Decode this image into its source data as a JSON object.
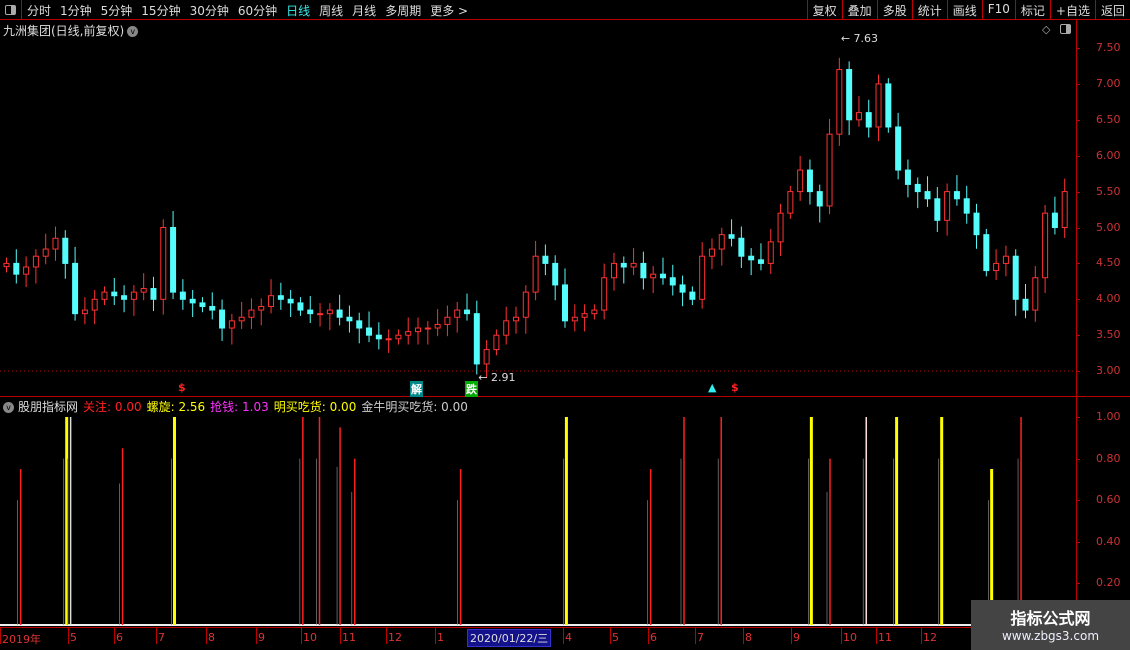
{
  "topbar": {
    "periods": [
      "分时",
      "1分钟",
      "5分钟",
      "15分钟",
      "30分钟",
      "60分钟",
      "日线",
      "周线",
      "月线",
      "多周期",
      "更多 >"
    ],
    "active_index": 6,
    "buttons": [
      "复权",
      "叠加",
      "多股",
      "统计",
      "画线",
      "F10",
      "标记",
      "+自选",
      "返回"
    ]
  },
  "stock_title": "九洲集团(日线,前复权)",
  "colors": {
    "up": "#ff3232",
    "down": "#54fcfc",
    "axis": "#b00000",
    "active": "#33eeee"
  },
  "chart_data": [
    {
      "type": "candlestick",
      "yticks": [
        "7.50",
        "7.00",
        "6.50",
        "6.00",
        "5.50",
        "5.00",
        "4.50",
        "4.00",
        "3.50",
        "3.00"
      ],
      "ylim": [
        2.8,
        7.7
      ],
      "closes": [
        4.5,
        4.35,
        4.45,
        4.6,
        4.7,
        4.85,
        4.5,
        3.8,
        3.85,
        4.0,
        4.1,
        4.05,
        4.0,
        4.1,
        4.15,
        4.0,
        5.0,
        4.1,
        4.0,
        3.95,
        3.9,
        3.85,
        3.6,
        3.7,
        3.75,
        3.85,
        3.9,
        4.05,
        4.0,
        3.95,
        3.85,
        3.8,
        3.8,
        3.85,
        3.75,
        3.7,
        3.6,
        3.5,
        3.45,
        3.45,
        3.5,
        3.55,
        3.6,
        3.6,
        3.65,
        3.75,
        3.85,
        3.8,
        3.1,
        3.3,
        3.5,
        3.7,
        3.75,
        4.1,
        4.6,
        4.5,
        4.2,
        3.7,
        3.75,
        3.8,
        3.85,
        4.3,
        4.5,
        4.45,
        4.5,
        4.3,
        4.35,
        4.3,
        4.2,
        4.1,
        4.0,
        4.6,
        4.7,
        4.9,
        4.85,
        4.6,
        4.55,
        4.5,
        4.8,
        5.2,
        5.5,
        5.8,
        5.5,
        5.3,
        6.3,
        7.2,
        6.5,
        6.6,
        6.4,
        7.0,
        6.4,
        5.8,
        5.6,
        5.5,
        5.4,
        5.1,
        5.5,
        5.4,
        5.2,
        4.9,
        4.4,
        4.5,
        4.6,
        4.0,
        3.85,
        4.3,
        5.2,
        5.0,
        5.5
      ],
      "high_annotation": "7.63",
      "low_annotation": "2.91",
      "markers": [
        "解",
        "跌"
      ]
    },
    {
      "type": "bar",
      "legend_name": "股朋指标网",
      "legend": [
        {
          "label": "关注: 0.00",
          "color": "#ff2020"
        },
        {
          "label": "螺旋: 2.56",
          "color": "#ffff00"
        },
        {
          "label": "抢钱: 1.03",
          "color": "#ff30ff"
        },
        {
          "label": "明买吃货: 0.00",
          "color": "#ffff00"
        },
        {
          "label": "金牛明买吃货: 0.00",
          "color": "#cccccc"
        }
      ],
      "yticks": [
        "1.00",
        "0.80",
        "0.60",
        "0.40",
        "0.20"
      ],
      "ylim": [
        0,
        1
      ],
      "bars": [
        [
          1.7,
          "#ff2020",
          0.75
        ],
        [
          6.4,
          "#ffff00",
          1
        ],
        [
          6.8,
          "#dddddd",
          1
        ],
        [
          12.1,
          "#ff2020",
          0.85
        ],
        [
          17.4,
          "#ffff00",
          1
        ],
        [
          30.5,
          "#ff2020",
          1
        ],
        [
          32.2,
          "#ff2020",
          1
        ],
        [
          34.3,
          "#ff2020",
          0.95
        ],
        [
          35.8,
          "#ff2020",
          0.8
        ],
        [
          46.6,
          "#ff2020",
          0.75
        ],
        [
          57.4,
          "#ffff00",
          1
        ],
        [
          66,
          "#ff2020",
          0.75
        ],
        [
          69.4,
          "#ff2020",
          1
        ],
        [
          73.2,
          "#ff2020",
          1
        ],
        [
          82.4,
          "#ffff00",
          1
        ],
        [
          84.3,
          "#ff2020",
          0.8
        ],
        [
          88,
          "#ffdddd",
          1
        ],
        [
          91.1,
          "#ffff00",
          1
        ],
        [
          95.7,
          "#ffff00",
          1
        ],
        [
          100.8,
          "#ffff00",
          0.75
        ],
        [
          103.8,
          "#ff2020",
          1
        ]
      ]
    }
  ],
  "date_axis": {
    "labels": [
      "2019年",
      "5",
      "6",
      "7",
      "8",
      "9",
      "10",
      "11",
      "12",
      "1",
      "4",
      "5",
      "6",
      "7",
      "8",
      "9",
      "10",
      "11",
      "12"
    ],
    "current_date": "2020/01/22/三"
  },
  "watermark": {
    "line1": "指标公式网",
    "line2": "www.zbgs3.com"
  }
}
